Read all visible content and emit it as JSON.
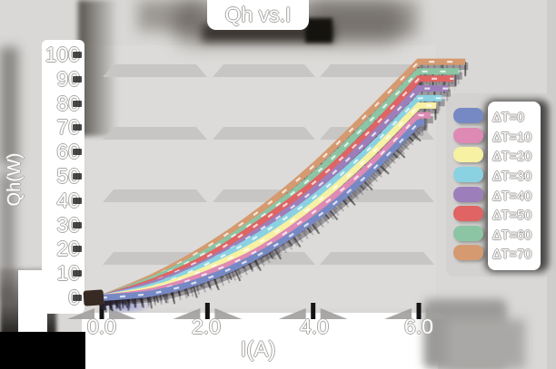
{
  "title": "Qh vs.I",
  "axes": {
    "x_label": "I(A)",
    "y_label": "Qh(W)",
    "x_tick_labels": [
      "0.0",
      "2.0",
      "4.0",
      "6.0"
    ],
    "y_tick_labels": [
      "100",
      "90",
      "80",
      "70",
      "60",
      "50",
      "40",
      "30",
      "20",
      "10",
      "0"
    ]
  },
  "chart_data": {
    "type": "line",
    "title": "Qh vs.I",
    "xlabel": "I(A)",
    "ylabel": "Qh(W)",
    "xlim": [
      0,
      6
    ],
    "ylim": [
      0,
      100
    ],
    "x_tick_values": [
      0,
      2,
      4,
      6
    ],
    "y_tick_interval": 10,
    "grid": "horizontal-bands",
    "legend_position": "right",
    "x": [
      0,
      1,
      2,
      3,
      4,
      5,
      6
    ],
    "series": [
      {
        "name": "ΔT=0",
        "color": "#7689c4",
        "values": [
          0,
          2,
          8,
          18,
          32,
          50,
          72
        ]
      },
      {
        "name": "ΔT=10",
        "color": "#de8ab4",
        "values": [
          0,
          3,
          10,
          20,
          35,
          53,
          75
        ]
      },
      {
        "name": "ΔT=20",
        "color": "#f6f1a3",
        "values": [
          0,
          4,
          12,
          23,
          38,
          57,
          79
        ]
      },
      {
        "name": "ΔT=30",
        "color": "#8ad2e2",
        "values": [
          0,
          5,
          14,
          26,
          41,
          60,
          82
        ]
      },
      {
        "name": "ΔT=40",
        "color": "#9c7fba",
        "values": [
          0,
          6,
          15,
          28,
          44,
          64,
          86
        ]
      },
      {
        "name": "ΔT=50",
        "color": "#df6463",
        "values": [
          0,
          7,
          17,
          31,
          47,
          67,
          90
        ]
      },
      {
        "name": "ΔT=60",
        "color": "#8cc5a3",
        "values": [
          0,
          8,
          19,
          33,
          50,
          71,
          93
        ]
      },
      {
        "name": "ΔT=70",
        "color": "#d59a70",
        "values": [
          0,
          9,
          21,
          36,
          54,
          75,
          97
        ]
      }
    ]
  }
}
